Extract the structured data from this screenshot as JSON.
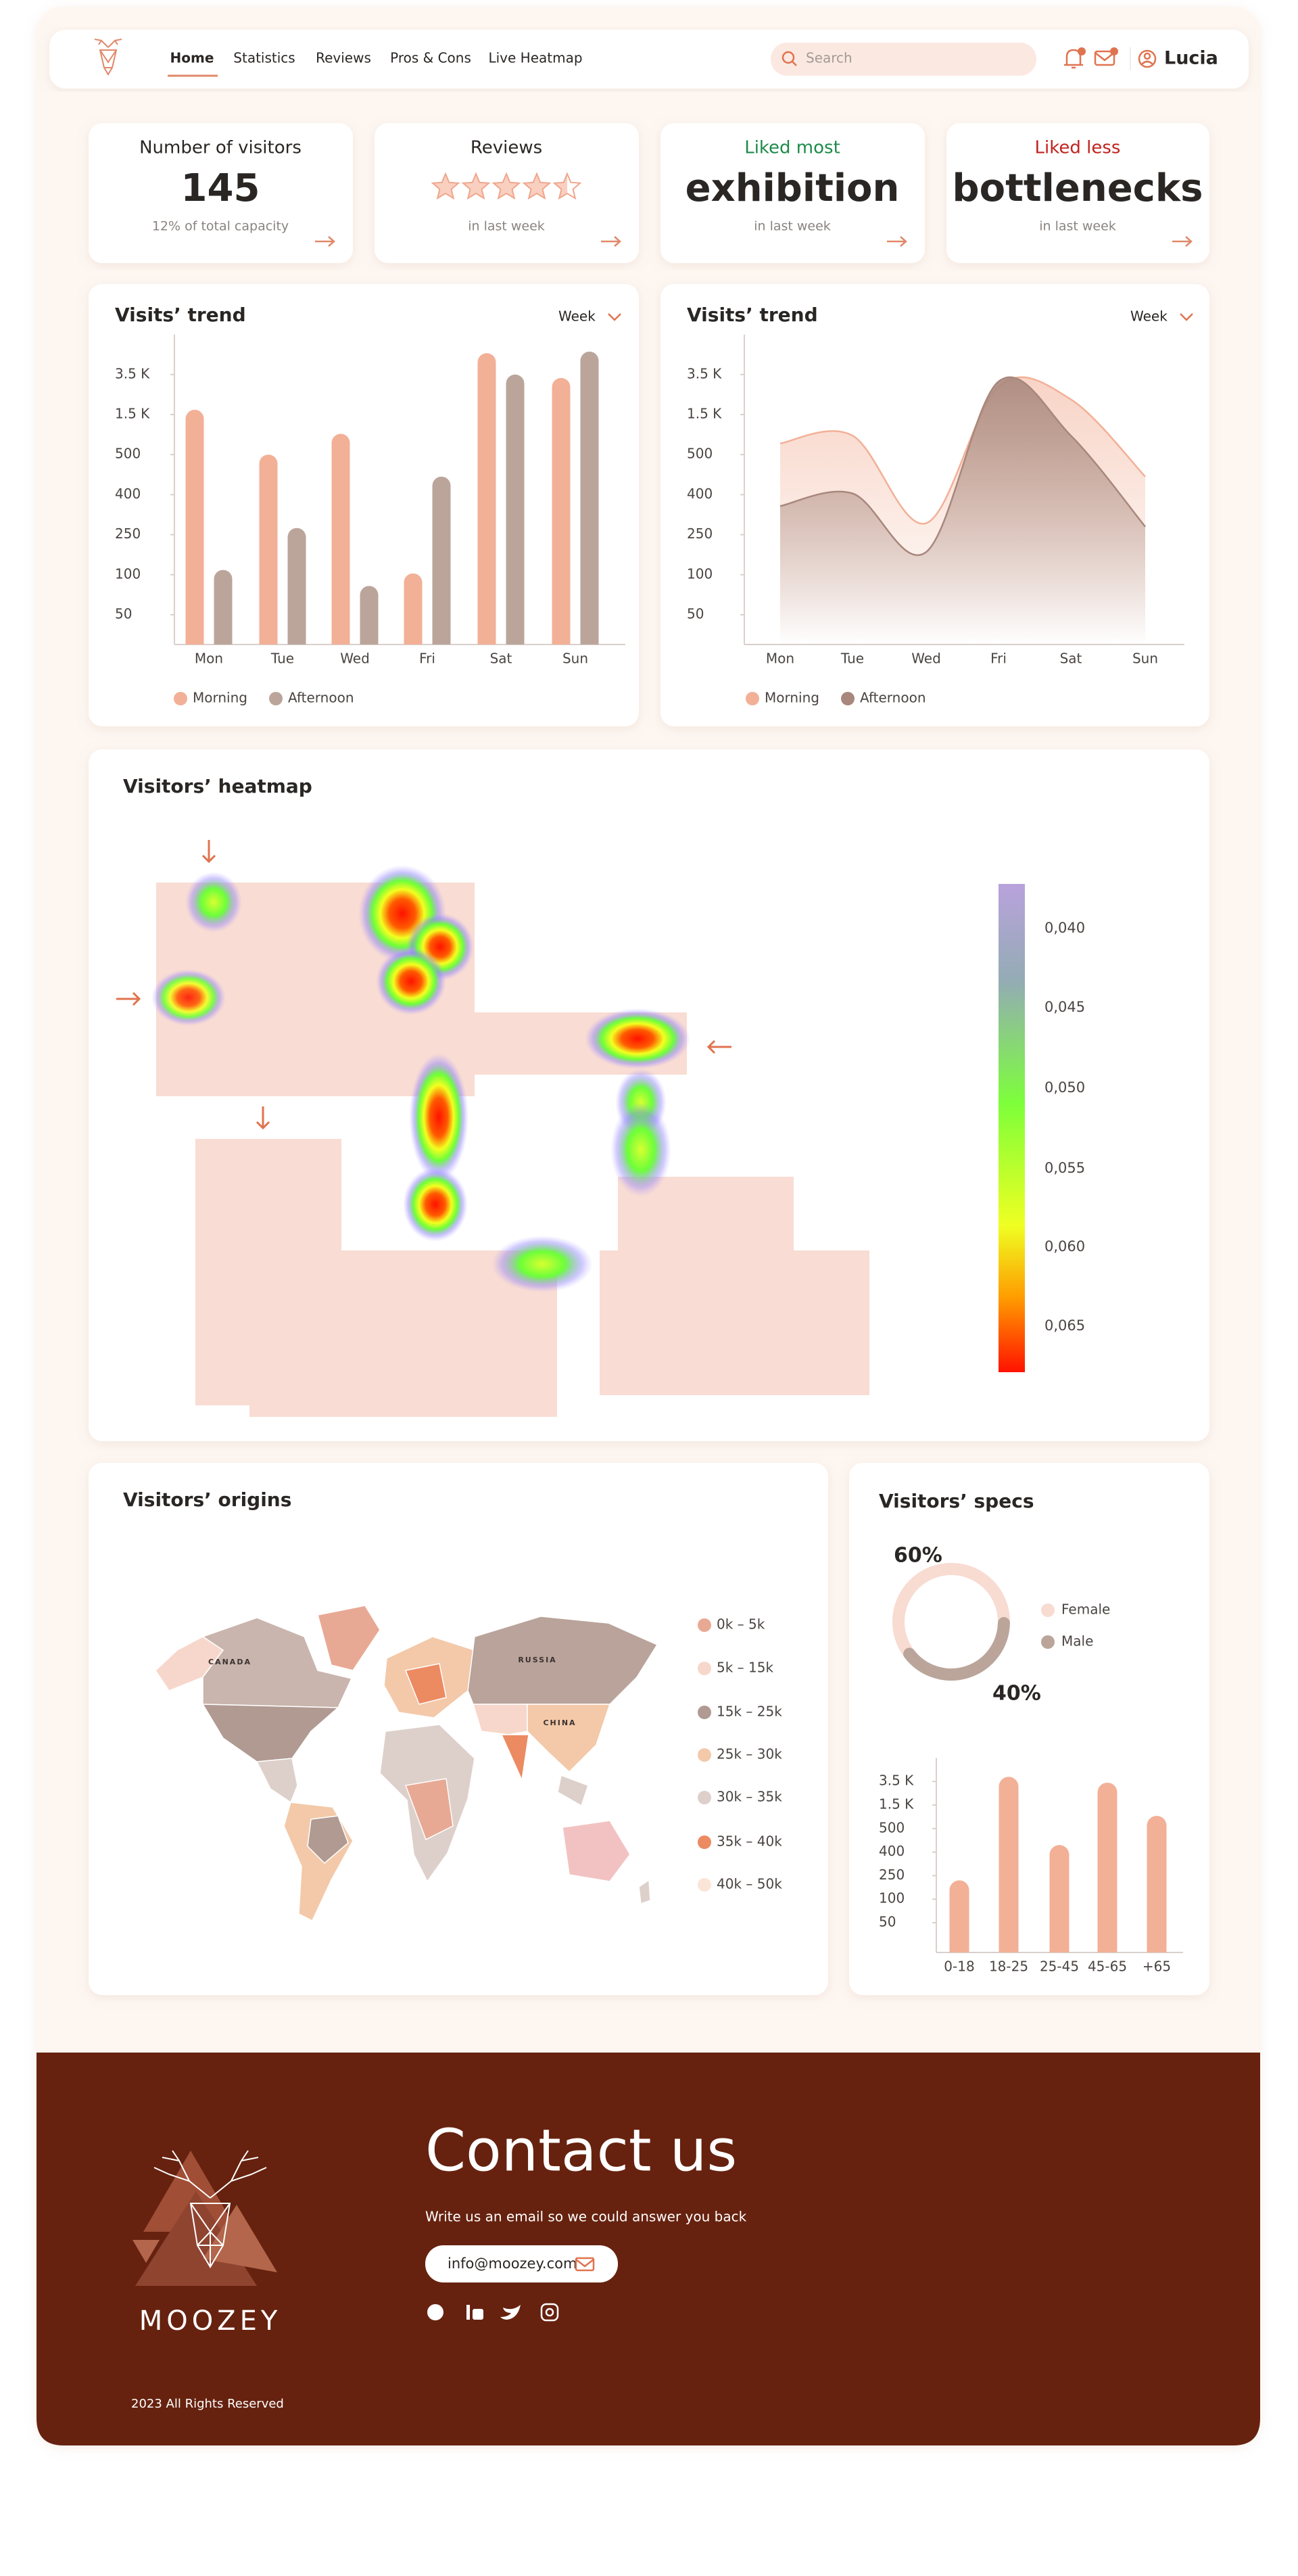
{
  "nav": {
    "items": [
      "Home",
      "Statistics",
      "Reviews",
      "Pros & Cons",
      "Live Heatmap"
    ],
    "search": "Search",
    "user": "Lucia"
  },
  "cards": [
    {
      "title": "Number of visitors",
      "value": 145,
      "caption": "12% of total capacity"
    },
    {
      "title": "Reviews",
      "rating": 4.5,
      "caption": "in last week"
    },
    {
      "title": "Liked most",
      "value": "exhibition",
      "caption": "in last week"
    },
    {
      "title": "Liked less",
      "value": "bottlenecks",
      "caption": "in last week"
    }
  ],
  "chart_data": [
    {
      "type": "bar",
      "title": "Visits’ trend",
      "period": "Week",
      "categories": [
        "Mon",
        "Tue",
        "Wed",
        "Fri",
        "Sat",
        "Sun"
      ],
      "series": [
        {
          "name": "Morning",
          "color": "#f2b097",
          "values": [
            1740,
            500,
            1020,
            105,
            4300,
            3330
          ]
        },
        {
          "name": "Afternoon",
          "color": "#bba59b",
          "values": [
            118,
            275,
            86,
            445,
            3500,
            4360
          ]
        }
      ],
      "ylim": [
        0,
        5000
      ],
      "yticks": [
        50,
        100,
        250,
        400,
        500,
        {
          "value": 1500,
          "label": "1.5 K"
        },
        {
          "value": 3500,
          "label": "3.5 K"
        }
      ]
    },
    {
      "type": "area",
      "title": "Visits’ trend",
      "period": "Week",
      "categories": [
        "Mon",
        "Tue",
        "Wed",
        "Fri",
        "Sat",
        "Sun"
      ],
      "series": [
        {
          "name": "Morning",
          "color": "#f2b097",
          "values": [
            780,
            975,
            293,
            2910,
            2260,
            445
          ]
        },
        {
          "name": "Afternoon",
          "color": "#a8877c",
          "values": [
            357,
            403,
            185,
            3150,
            975,
            280
          ]
        }
      ],
      "ylim": [
        0,
        5000
      ],
      "yticks": [
        50,
        100,
        250,
        400,
        500,
        {
          "value": 1500,
          "label": "1.5 K"
        },
        {
          "value": 3500,
          "label": "3.5 K"
        }
      ]
    },
    {
      "type": "donut",
      "title": "Visitors’ specs",
      "categories": [
        "Female",
        "Male"
      ],
      "values": [
        60,
        40
      ],
      "value_labels": [
        "60%",
        "40%"
      ],
      "colors": [
        "#f8dbd1",
        "#bba59b"
      ]
    },
    {
      "type": "bar",
      "categories": [
        "0-18",
        "18-25",
        "25-45",
        "45-65",
        "+65"
      ],
      "values": [
        220,
        3800,
        430,
        3400,
        1040
      ],
      "color": "#f2b097",
      "ylim": [
        0,
        5000
      ],
      "yticks": [
        50,
        100,
        250,
        400,
        500,
        {
          "value": 1500,
          "label": "1.5 K"
        },
        {
          "value": 3500,
          "label": "3.5 K"
        }
      ]
    }
  ],
  "heatmap": {
    "title": "Visitors’ heatmap",
    "scale": [
      "0,040",
      "0,045",
      "0,050",
      "0,055",
      "0,060",
      "0,065"
    ]
  },
  "origins": {
    "title": "Visitors’ origins",
    "map_labels": [
      "CANADA",
      "RUSSIA",
      "CHINA"
    ],
    "legend": [
      {
        "label": "0k – 5k",
        "color": "#e8a994"
      },
      {
        "label": "5k – 15k",
        "color": "#f7d7cb"
      },
      {
        "label": "15k – 25k",
        "color": "#b09a92"
      },
      {
        "label": "25k – 30k",
        "color": "#f3c9a9"
      },
      {
        "label": "30k – 35k",
        "color": "#ddd0cb"
      },
      {
        "label": "35k – 40k",
        "color": "#ec8a62"
      },
      {
        "label": "40k – 50k",
        "color": "#fbe4d8"
      }
    ]
  },
  "footer": {
    "title": "Contact us",
    "text": "Write us an email so we could answer you back",
    "email": "info@moozey.com",
    "brand": "MOOZEY",
    "copyright": "2023 All Rights Reserved"
  }
}
